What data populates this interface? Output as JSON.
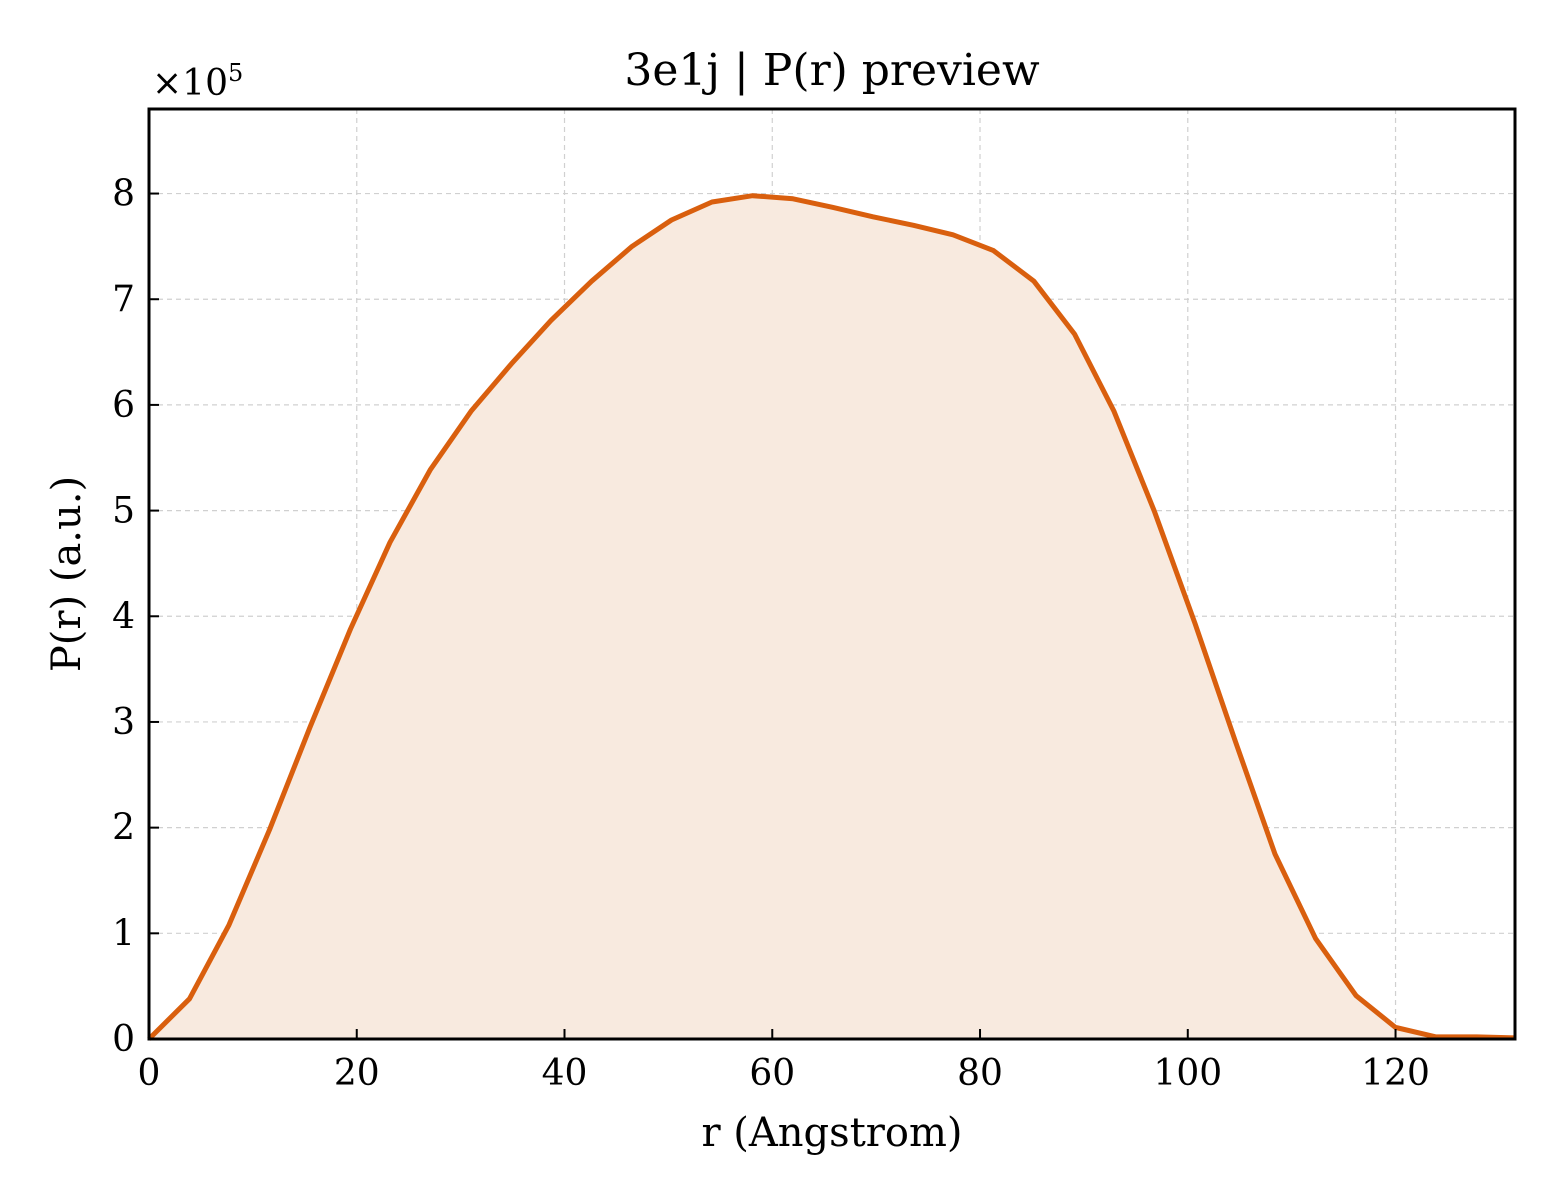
{
  "chart_data": {
    "type": "area",
    "title": "3e1j | P(r) preview",
    "xlabel": "r (Angstrom)",
    "ylabel": "P(r) (a.u.)",
    "y_multiplier_label": "×10",
    "y_multiplier_exponent": "5",
    "xlim": [
      0,
      131.5
    ],
    "ylim": [
      0,
      8.8
    ],
    "xticks": [
      0,
      20,
      40,
      60,
      80,
      100,
      120
    ],
    "xtick_labels": [
      "0",
      "20",
      "40",
      "60",
      "80",
      "100",
      "120"
    ],
    "yticks": [
      0,
      1,
      2,
      3,
      4,
      5,
      6,
      7,
      8
    ],
    "ytick_labels": [
      "0",
      "1",
      "2",
      "3",
      "4",
      "5",
      "6",
      "7",
      "8"
    ],
    "grid": true,
    "line_color": "#d95f0e",
    "fill_color": "#f8eadf",
    "series": [
      {
        "x": [
          0,
          3.9,
          7.7,
          11.6,
          15.5,
          19.4,
          23.2,
          27.1,
          31.0,
          34.9,
          38.7,
          42.6,
          46.5,
          50.3,
          54.2,
          58.1,
          62.0,
          65.8,
          69.7,
          73.6,
          77.4,
          81.3,
          85.2,
          89.1,
          92.9,
          96.8,
          100.7,
          104.6,
          108.4,
          112.3,
          116.2,
          120.0,
          123.9,
          127.8,
          131.5
        ],
        "y": [
          0,
          0.38,
          1.08,
          1.98,
          2.95,
          3.88,
          4.7,
          5.39,
          5.94,
          6.39,
          6.8,
          7.17,
          7.5,
          7.75,
          7.92,
          7.98,
          7.95,
          7.87,
          7.78,
          7.7,
          7.61,
          7.46,
          7.17,
          6.67,
          5.94,
          4.99,
          3.93,
          2.81,
          1.75,
          0.95,
          0.41,
          0.11,
          0.02,
          0.02,
          0.01
        ]
      }
    ]
  }
}
